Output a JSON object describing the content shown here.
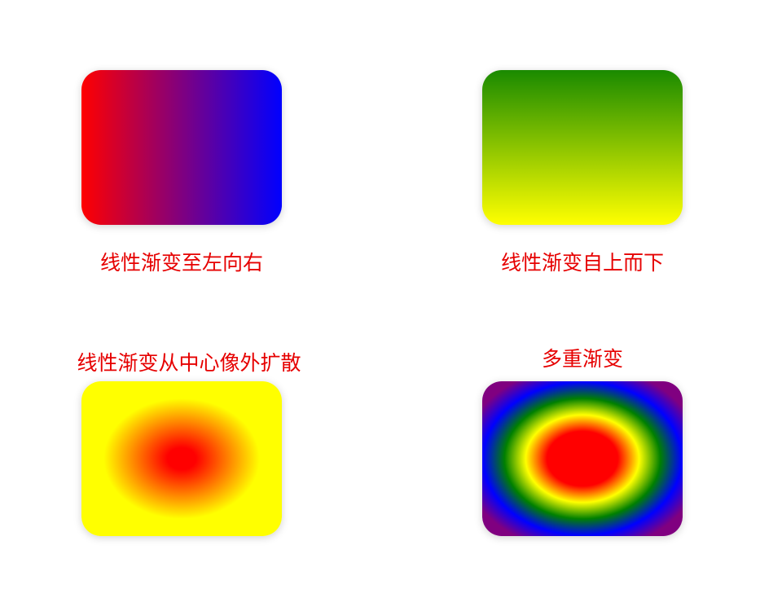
{
  "panels": [
    {
      "caption": "线性渐变至左向右",
      "gradient_type": "linear",
      "direction": "to right",
      "colors": [
        "#ff0000",
        "#0000ff"
      ]
    },
    {
      "caption": "线性渐变自上而下",
      "gradient_type": "linear",
      "direction": "to bottom",
      "colors": [
        "#1a8a00",
        "#ffff00"
      ]
    },
    {
      "caption": "线性渐变从中心像外扩散",
      "gradient_type": "radial",
      "colors": [
        "#ff0000",
        "#ffff00"
      ]
    },
    {
      "caption": "多重渐变",
      "gradient_type": "radial",
      "colors": [
        "#ff0000",
        "#ffff00",
        "#008000",
        "#0000ff",
        "#800080"
      ]
    }
  ]
}
